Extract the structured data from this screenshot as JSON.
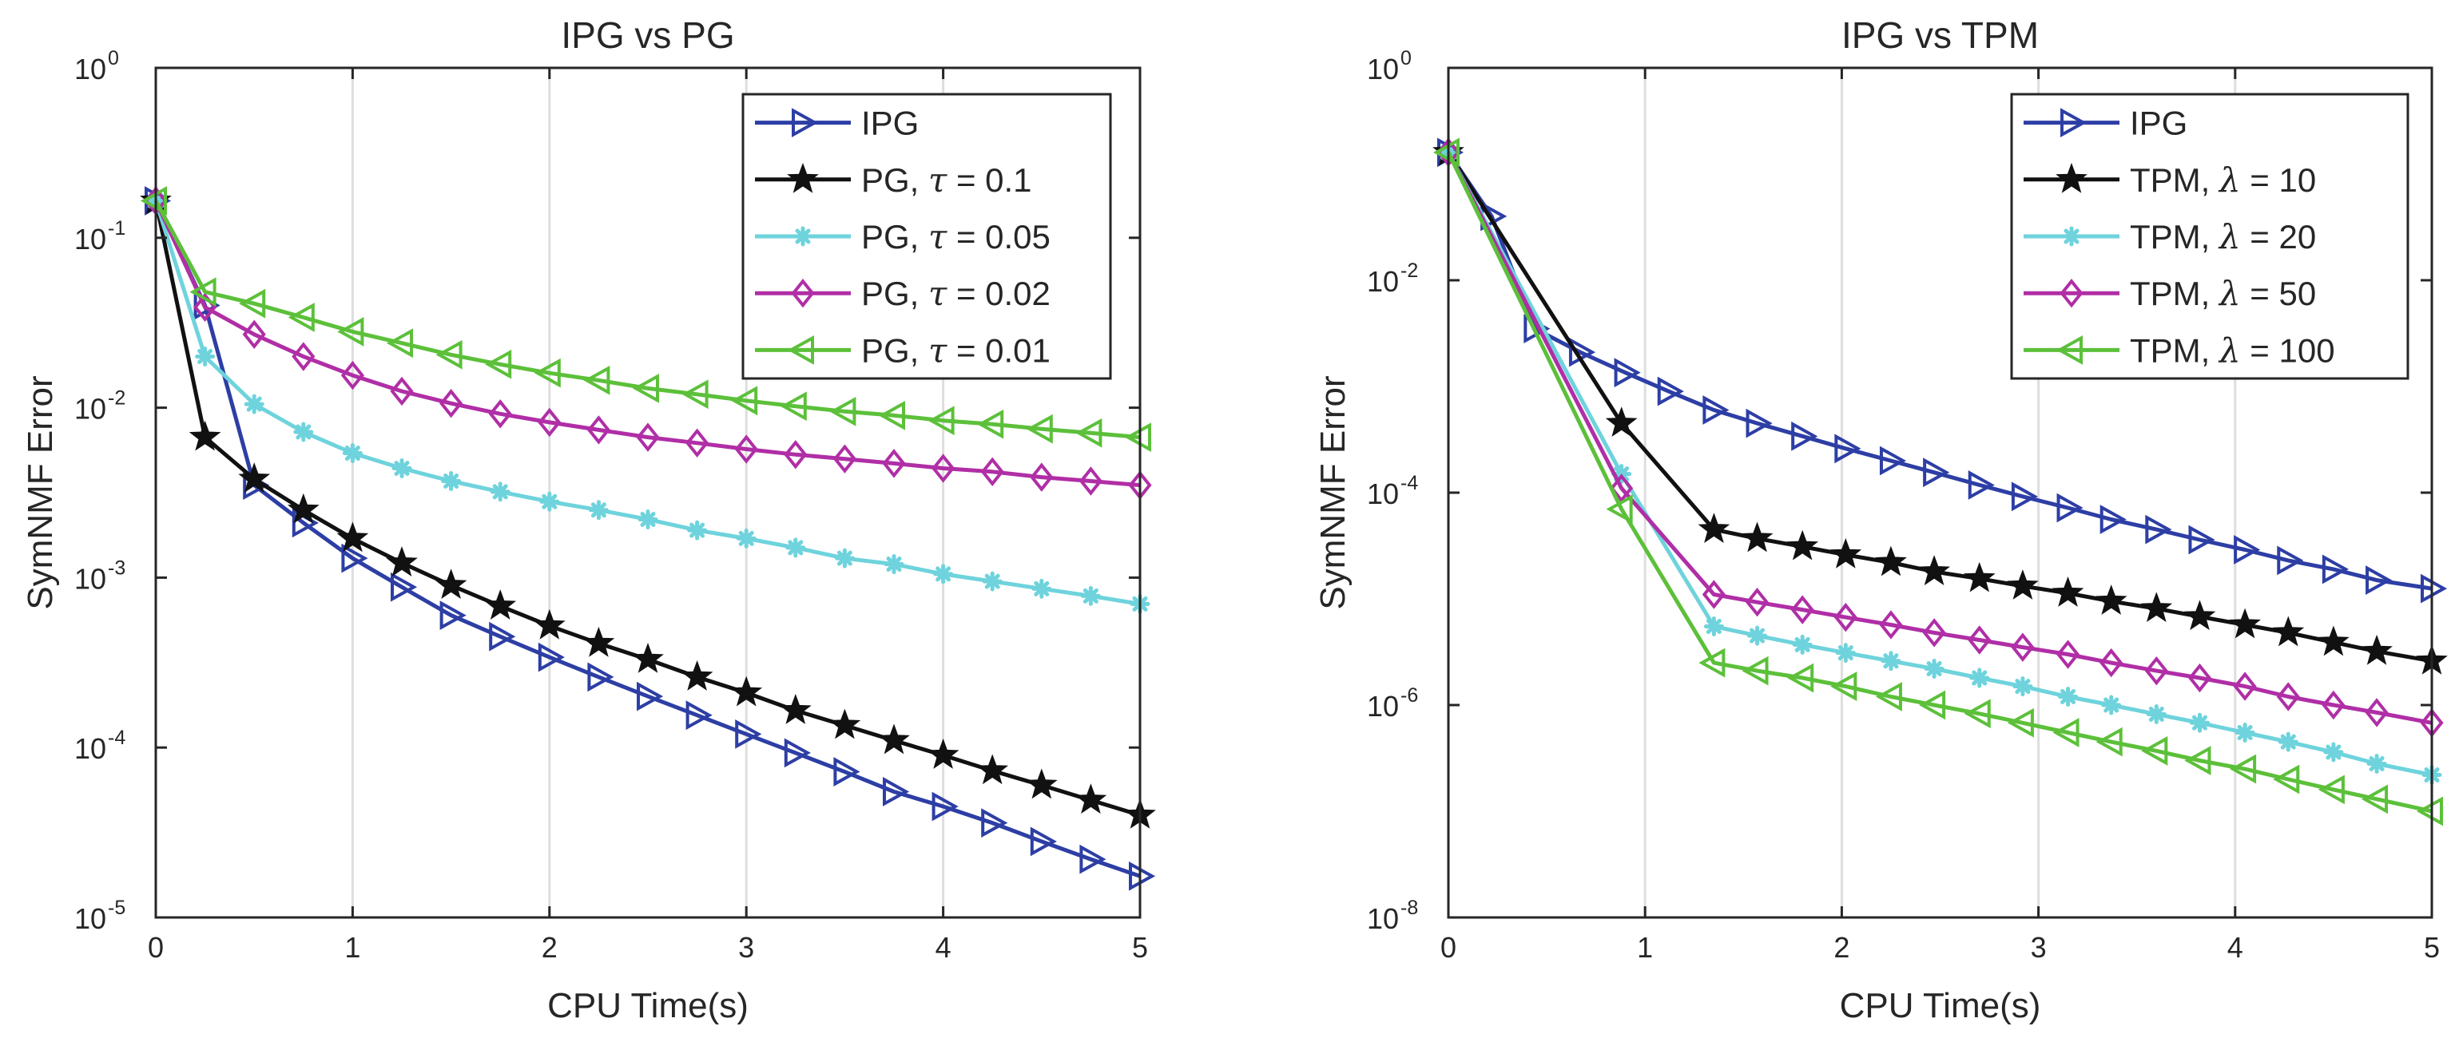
{
  "chart_data": [
    {
      "type": "line",
      "title": "IPG vs PG",
      "xlabel": "CPU Time(s)",
      "ylabel": "SymNMF Error",
      "xlim": [
        0,
        5
      ],
      "ylim": [
        1e-05,
        1
      ],
      "yscale": "log",
      "grid": "x only",
      "legend_position": "top-right",
      "xticks": [
        "0",
        "1",
        "2",
        "3",
        "4",
        "5"
      ],
      "yticks": [
        {
          "value": 1e-05,
          "base": "10",
          "exp": "-5"
        },
        {
          "value": 0.0001,
          "base": "10",
          "exp": "-4"
        },
        {
          "value": 0.001,
          "base": "10",
          "exp": "-3"
        },
        {
          "value": 0.01,
          "base": "10",
          "exp": "-2"
        },
        {
          "value": 0.1,
          "base": "10",
          "exp": "-1"
        },
        {
          "value": 1,
          "base": "10",
          "exp": "0"
        }
      ],
      "series": [
        {
          "label": "IPG",
          "param": "",
          "value": "",
          "color": "#2d3ea5",
          "marker": "triangle-right",
          "x": [
            0,
            0.25,
            0.5,
            0.75,
            1.0,
            1.25,
            1.5,
            1.75,
            2.0,
            2.25,
            2.5,
            2.75,
            3.0,
            3.25,
            3.5,
            3.75,
            4.0,
            4.25,
            4.5,
            4.75,
            5.0
          ],
          "y": [
            0.165,
            0.04,
            0.0035,
            0.0021,
            0.0013,
            0.00088,
            0.0006,
            0.00045,
            0.00034,
            0.00026,
            0.0002,
            0.000155,
            0.00012,
            9.3e-05,
            7.2e-05,
            5.5e-05,
            4.5e-05,
            3.6e-05,
            2.8e-05,
            2.2e-05,
            1.75e-05
          ]
        },
        {
          "label": "PG, ",
          "param": "τ",
          "value": " = 0.1",
          "color": "#111111",
          "marker": "star",
          "x": [
            0,
            0.25,
            0.5,
            0.75,
            1.0,
            1.25,
            1.5,
            1.75,
            2.0,
            2.25,
            2.5,
            2.75,
            3.0,
            3.25,
            3.5,
            3.75,
            4.0,
            4.25,
            4.5,
            4.75,
            5.0
          ],
          "y": [
            0.165,
            0.0067,
            0.0038,
            0.0025,
            0.0017,
            0.00122,
            0.0009,
            0.00068,
            0.00052,
            0.00041,
            0.00033,
            0.00026,
            0.00021,
            0.000165,
            0.000135,
            0.00011,
            9e-05,
            7.3e-05,
            6e-05,
            4.9e-05,
            4e-05
          ]
        },
        {
          "label": "PG, ",
          "param": "τ",
          "value": " = 0.05",
          "color": "#6ed3dc",
          "marker": "asterisk",
          "x": [
            0,
            0.25,
            0.5,
            0.75,
            1.0,
            1.25,
            1.5,
            1.75,
            2.0,
            2.25,
            2.5,
            2.75,
            3.0,
            3.25,
            3.5,
            3.75,
            4.0,
            4.25,
            4.5,
            4.75,
            5.0
          ],
          "y": [
            0.165,
            0.02,
            0.0105,
            0.0072,
            0.0054,
            0.0044,
            0.0037,
            0.0032,
            0.0028,
            0.0025,
            0.0022,
            0.0019,
            0.0017,
            0.0015,
            0.0013,
            0.0012,
            0.00105,
            0.00095,
            0.00086,
            0.00078,
            0.0007
          ]
        },
        {
          "label": "PG, ",
          "param": "τ",
          "value": " = 0.02",
          "color": "#b02ea6",
          "marker": "diamond",
          "x": [
            0,
            0.25,
            0.5,
            0.75,
            1.0,
            1.25,
            1.5,
            1.75,
            2.0,
            2.25,
            2.5,
            2.75,
            3.0,
            3.25,
            3.5,
            3.75,
            4.0,
            4.25,
            4.5,
            4.75,
            5.0
          ],
          "y": [
            0.165,
            0.039,
            0.027,
            0.02,
            0.0155,
            0.0125,
            0.0106,
            0.0092,
            0.0082,
            0.0074,
            0.0067,
            0.0062,
            0.0057,
            0.0053,
            0.005,
            0.0047,
            0.0044,
            0.0042,
            0.0039,
            0.0037,
            0.0035
          ]
        },
        {
          "label": "PG, ",
          "param": "τ",
          "value": " = 0.01",
          "color": "#5cc03a",
          "marker": "triangle-left",
          "x": [
            0,
            0.25,
            0.5,
            0.75,
            1.0,
            1.25,
            1.5,
            1.75,
            2.0,
            2.25,
            2.5,
            2.75,
            3.0,
            3.25,
            3.5,
            3.75,
            4.0,
            4.25,
            4.5,
            4.75,
            5.0
          ],
          "y": [
            0.165,
            0.048,
            0.041,
            0.034,
            0.028,
            0.024,
            0.0205,
            0.018,
            0.016,
            0.0145,
            0.013,
            0.012,
            0.011,
            0.0102,
            0.0095,
            0.009,
            0.0084,
            0.008,
            0.0075,
            0.0071,
            0.0067
          ]
        }
      ]
    },
    {
      "type": "line",
      "title": "IPG vs TPM",
      "xlabel": "CPU Time(s)",
      "ylabel": "SymNMF Error",
      "xlim": [
        0,
        5
      ],
      "ylim": [
        1e-08,
        1
      ],
      "yscale": "log",
      "grid": "x only",
      "legend_position": "top-right",
      "xticks": [
        "0",
        "1",
        "2",
        "3",
        "4",
        "5"
      ],
      "yticks": [
        {
          "value": 1e-08,
          "base": "10",
          "exp": "-8"
        },
        {
          "value": 1e-06,
          "base": "10",
          "exp": "-6"
        },
        {
          "value": 0.0001,
          "base": "10",
          "exp": "-4"
        },
        {
          "value": 0.01,
          "base": "10",
          "exp": "-2"
        },
        {
          "value": 1,
          "base": "10",
          "exp": "0"
        }
      ],
      "series": [
        {
          "label": "IPG",
          "param": "",
          "value": "",
          "color": "#2d3ea5",
          "marker": "triangle-right",
          "x": [
            0,
            0.22,
            0.44,
            0.67,
            0.9,
            1.12,
            1.35,
            1.57,
            1.8,
            2.02,
            2.25,
            2.47,
            2.7,
            2.92,
            3.15,
            3.37,
            3.6,
            3.82,
            4.05,
            4.27,
            4.5,
            4.72,
            5.0
          ],
          "y": [
            0.16,
            0.04,
            0.0035,
            0.0021,
            0.00135,
            0.0009,
            0.0006,
            0.00045,
            0.00034,
            0.00026,
            0.0002,
            0.000155,
            0.000118,
            9.2e-05,
            7.2e-05,
            5.6e-05,
            4.5e-05,
            3.6e-05,
            2.9e-05,
            2.3e-05,
            1.9e-05,
            1.5e-05,
            1.25e-05
          ]
        },
        {
          "label": "TPM, ",
          "param": "λ",
          "value": " = 10",
          "color": "#111111",
          "marker": "star",
          "x": [
            0,
            0.88,
            1.35,
            1.57,
            1.8,
            2.02,
            2.25,
            2.47,
            2.7,
            2.92,
            3.15,
            3.37,
            3.6,
            3.82,
            4.05,
            4.27,
            4.5,
            4.72,
            5.0
          ],
          "y": [
            0.16,
            0.00045,
            4.5e-05,
            3.7e-05,
            3.1e-05,
            2.6e-05,
            2.2e-05,
            1.8e-05,
            1.55e-05,
            1.32e-05,
            1.13e-05,
            9.5e-06,
            8.1e-06,
            6.8e-06,
            5.7e-06,
            4.8e-06,
            3.9e-06,
            3.2e-06,
            2.6e-06
          ]
        },
        {
          "label": "TPM, ",
          "param": "λ",
          "value": " = 20",
          "color": "#6ed3dc",
          "marker": "asterisk",
          "x": [
            0,
            0.88,
            1.35,
            1.57,
            1.8,
            2.02,
            2.25,
            2.47,
            2.7,
            2.92,
            3.15,
            3.37,
            3.6,
            3.82,
            4.05,
            4.27,
            4.5,
            4.72,
            5.0
          ],
          "y": [
            0.16,
            0.00015,
            5.5e-06,
            4.5e-06,
            3.7e-06,
            3.1e-06,
            2.6e-06,
            2.2e-06,
            1.8e-06,
            1.5e-06,
            1.2e-06,
            1e-06,
            8.2e-07,
            6.8e-07,
            5.5e-07,
            4.5e-07,
            3.6e-07,
            2.8e-07,
            2.2e-07
          ]
        },
        {
          "label": "TPM, ",
          "param": "λ",
          "value": " = 50",
          "color": "#b02ea6",
          "marker": "diamond",
          "x": [
            0,
            0.88,
            1.35,
            1.57,
            1.8,
            2.02,
            2.25,
            2.47,
            2.7,
            2.92,
            3.15,
            3.37,
            3.6,
            3.82,
            4.05,
            4.27,
            4.5,
            4.72,
            5.0
          ],
          "y": [
            0.16,
            0.00011,
            1.1e-05,
            9.3e-06,
            7.9e-06,
            6.7e-06,
            5.7e-06,
            4.8e-06,
            4.1e-06,
            3.5e-06,
            3e-06,
            2.5e-06,
            2.1e-06,
            1.8e-06,
            1.5e-06,
            1.2e-06,
            1e-06,
            8.5e-07,
            6.8e-07
          ]
        },
        {
          "label": "TPM, ",
          "param": "λ",
          "value": " = 100",
          "color": "#5cc03a",
          "marker": "triangle-left",
          "x": [
            0,
            0.88,
            1.35,
            1.57,
            1.8,
            2.02,
            2.25,
            2.47,
            2.7,
            2.92,
            3.15,
            3.37,
            3.6,
            3.82,
            4.05,
            4.27,
            4.5,
            4.72,
            5.0
          ],
          "y": [
            0.16,
            7e-05,
            2.5e-06,
            2.1e-06,
            1.8e-06,
            1.5e-06,
            1.2e-06,
            1e-06,
            8.3e-07,
            6.8e-07,
            5.5e-07,
            4.5e-07,
            3.7e-07,
            3e-07,
            2.5e-07,
            2e-07,
            1.6e-07,
            1.3e-07,
            1e-07
          ]
        }
      ]
    }
  ]
}
